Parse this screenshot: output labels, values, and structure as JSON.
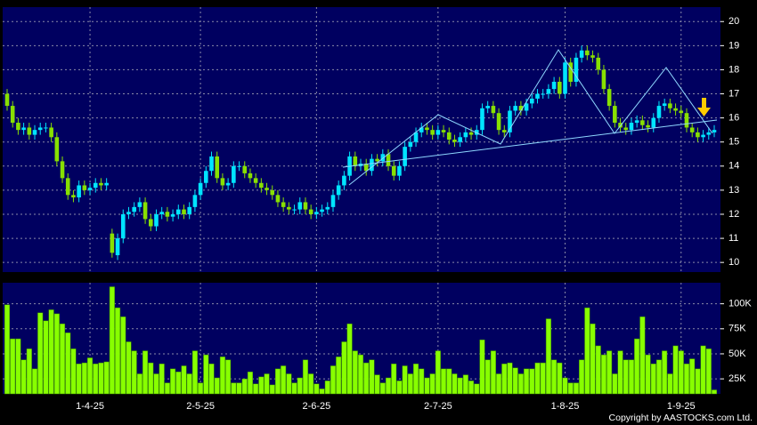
{
  "chart_data": {
    "type": "candlestick",
    "categories": [
      null,
      null,
      null,
      null,
      null,
      null,
      null,
      null,
      null,
      null,
      null,
      null,
      null,
      null,
      null,
      "1-4-25",
      null,
      null,
      null,
      null,
      null,
      null,
      null,
      null,
      null,
      null,
      null,
      null,
      null,
      null,
      null,
      null,
      null,
      null,
      null,
      "2-5-25",
      null,
      null,
      null,
      null,
      null,
      null,
      null,
      null,
      null,
      null,
      null,
      null,
      null,
      null,
      null,
      null,
      null,
      null,
      null,
      null,
      "2-6-25",
      null,
      null,
      null,
      null,
      null,
      null,
      null,
      null,
      null,
      null,
      null,
      null,
      null,
      null,
      null,
      null,
      null,
      null,
      null,
      null,
      null,
      "2-7-25",
      null,
      null,
      null,
      null,
      null,
      null,
      null,
      null,
      null,
      null,
      null,
      null,
      null,
      null,
      null,
      null,
      null,
      null,
      null,
      null,
      null,
      null,
      "1-8-25",
      null,
      null,
      null,
      null,
      null,
      null,
      null,
      null,
      null,
      null,
      null,
      null,
      null,
      null,
      null,
      null,
      null,
      null,
      null,
      null,
      "1-9-25",
      null,
      null,
      null,
      null,
      null,
      null
    ],
    "open": [
      17.0,
      16.5,
      15.8,
      15.5,
      15.6,
      15.3,
      15.5,
      15.6,
      15.6,
      15.2,
      14.2,
      13.5,
      12.8,
      12.7,
      13.2,
      13.0,
      13.1,
      13.3,
      13.2,
      11.2,
      10.3,
      11.0,
      12.0,
      12.1,
      12.3,
      12.5,
      11.8,
      11.5,
      12.0,
      12.1,
      11.9,
      12.0,
      12.2,
      12.0,
      12.3,
      12.8,
      13.3,
      13.8,
      14.4,
      13.5,
      13.2,
      13.3,
      14.0,
      14.0,
      13.7,
      13.5,
      13.3,
      13.1,
      13.0,
      12.8,
      12.5,
      12.3,
      12.2,
      12.2,
      12.5,
      12.2,
      12.0,
      12.1,
      12.2,
      12.3,
      12.8,
      13.2,
      13.6,
      14.4,
      14.0,
      14.1,
      13.8,
      14.3,
      14.2,
      14.5,
      14.0,
      13.6,
      14.0,
      14.8,
      15.0,
      15.4,
      15.6,
      15.5,
      15.3,
      15.5,
      15.4,
      15.1,
      15.0,
      15.2,
      15.4,
      15.3,
      15.5,
      16.4,
      16.5,
      16.2,
      15.5,
      15.4,
      16.3,
      16.5,
      16.3,
      16.6,
      16.8,
      17.0,
      17.0,
      17.2,
      17.5,
      17.0,
      18.3,
      17.5,
      18.5,
      18.8,
      18.6,
      18.5,
      18.0,
      17.2,
      16.5,
      15.8,
      15.6,
      15.5,
      15.8,
      15.9,
      15.7,
      15.6,
      16.0,
      16.5,
      16.6,
      16.4,
      16.3,
      16.2,
      15.6,
      15.4,
      15.2,
      15.3,
      15.4
    ],
    "high": [
      17.2,
      16.7,
      16.0,
      15.8,
      15.8,
      15.7,
      15.8,
      15.8,
      15.8,
      15.4,
      14.4,
      13.7,
      13.0,
      13.4,
      13.4,
      13.3,
      13.5,
      13.5,
      13.5,
      11.4,
      11.2,
      12.2,
      12.3,
      12.5,
      12.7,
      12.7,
      12.0,
      12.2,
      12.3,
      12.3,
      12.2,
      12.4,
      12.4,
      12.5,
      13.0,
      13.5,
      14.0,
      14.6,
      14.6,
      13.7,
      13.5,
      14.2,
      14.2,
      14.2,
      13.9,
      13.7,
      13.5,
      13.3,
      13.2,
      13.0,
      12.7,
      12.5,
      12.4,
      12.7,
      12.7,
      12.4,
      12.3,
      12.4,
      12.5,
      13.0,
      13.4,
      13.8,
      14.6,
      14.6,
      14.3,
      14.3,
      14.5,
      14.5,
      14.7,
      14.7,
      14.2,
      14.2,
      15.0,
      15.2,
      15.6,
      15.8,
      15.8,
      15.7,
      15.7,
      15.7,
      15.6,
      15.3,
      15.4,
      15.6,
      15.6,
      15.7,
      16.6,
      16.7,
      16.7,
      16.4,
      15.7,
      16.5,
      16.7,
      16.7,
      16.8,
      17.0,
      17.2,
      17.2,
      17.4,
      17.7,
      17.7,
      18.5,
      18.5,
      18.7,
      19.0,
      19.0,
      18.8,
      18.7,
      18.2,
      17.4,
      16.7,
      16.0,
      15.8,
      16.0,
      16.1,
      16.1,
      15.9,
      16.2,
      16.7,
      16.8,
      16.8,
      16.6,
      16.5,
      16.4,
      15.8,
      15.6,
      15.5,
      15.6,
      15.7
    ],
    "low": [
      16.3,
      15.6,
      15.3,
      15.3,
      15.1,
      15.1,
      15.3,
      15.4,
      15.0,
      14.0,
      13.3,
      12.6,
      12.5,
      12.5,
      12.8,
      12.8,
      12.9,
      13.0,
      13.0,
      10.2,
      10.1,
      10.8,
      11.8,
      11.9,
      12.1,
      11.6,
      11.3,
      11.3,
      11.8,
      11.7,
      11.7,
      11.8,
      11.8,
      11.8,
      12.1,
      12.6,
      13.1,
      13.6,
      13.3,
      13.0,
      13.0,
      13.1,
      13.8,
      13.5,
      13.3,
      13.1,
      12.9,
      12.8,
      12.6,
      12.3,
      12.1,
      12.0,
      12.0,
      12.0,
      12.0,
      11.8,
      11.8,
      11.9,
      12.0,
      12.1,
      12.6,
      13.0,
      13.4,
      13.8,
      13.8,
      13.6,
      13.6,
      14.0,
      14.0,
      13.8,
      13.4,
      13.4,
      13.8,
      14.6,
      14.8,
      15.2,
      15.3,
      15.1,
      15.1,
      15.2,
      14.9,
      14.8,
      14.8,
      15.0,
      15.1,
      15.1,
      15.3,
      16.2,
      16.0,
      15.3,
      15.2,
      15.2,
      16.1,
      16.1,
      16.1,
      16.4,
      16.6,
      16.8,
      16.8,
      17.0,
      16.8,
      16.8,
      17.3,
      17.3,
      18.3,
      18.4,
      18.3,
      17.8,
      17.0,
      16.3,
      15.6,
      15.4,
      15.3,
      15.3,
      15.6,
      15.5,
      15.4,
      15.4,
      15.8,
      16.3,
      16.2,
      16.1,
      16.0,
      15.4,
      15.2,
      15.0,
      15.0,
      15.1,
      15.2
    ],
    "close": [
      16.5,
      15.8,
      15.5,
      15.6,
      15.3,
      15.5,
      15.6,
      15.6,
      15.2,
      14.2,
      13.5,
      12.8,
      12.7,
      13.2,
      13.0,
      13.1,
      13.3,
      13.2,
      13.3,
      10.4,
      11.0,
      12.0,
      12.1,
      12.3,
      12.5,
      11.8,
      11.5,
      12.0,
      12.1,
      11.9,
      12.0,
      12.2,
      12.0,
      12.3,
      12.8,
      13.3,
      13.8,
      14.4,
      13.5,
      13.2,
      13.3,
      14.0,
      14.0,
      13.7,
      13.5,
      13.3,
      13.1,
      13.0,
      12.8,
      12.5,
      12.3,
      12.2,
      12.2,
      12.5,
      12.2,
      12.0,
      12.1,
      12.2,
      12.3,
      12.8,
      13.2,
      13.6,
      14.4,
      14.0,
      14.1,
      13.8,
      14.3,
      14.2,
      14.5,
      14.0,
      13.6,
      14.0,
      14.8,
      15.0,
      15.4,
      15.6,
      15.5,
      15.3,
      15.5,
      15.4,
      15.1,
      15.0,
      15.2,
      15.4,
      15.3,
      15.5,
      16.4,
      16.5,
      16.2,
      15.5,
      15.4,
      16.3,
      16.5,
      16.3,
      16.6,
      16.8,
      17.0,
      17.0,
      17.2,
      17.5,
      17.0,
      18.3,
      17.5,
      18.5,
      18.8,
      18.6,
      18.5,
      18.0,
      17.2,
      16.5,
      15.8,
      15.6,
      15.5,
      15.8,
      15.9,
      15.7,
      15.6,
      16.0,
      16.5,
      16.6,
      16.4,
      16.3,
      16.2,
      15.6,
      15.4,
      15.2,
      15.3,
      15.4,
      15.5
    ],
    "up_color": "#00e5ff",
    "down_color": "#88e000",
    "ylim": [
      9.6,
      20.6
    ],
    "yticks": [
      10,
      11,
      12,
      13,
      14,
      15,
      16,
      17,
      18,
      19,
      20
    ],
    "grid": true,
    "volume": {
      "type": "bar",
      "color": "#88ff00",
      "values": [
        99000,
        65000,
        65000,
        44000,
        55000,
        35000,
        91000,
        83000,
        94000,
        90000,
        80000,
        71000,
        55000,
        40000,
        41000,
        46000,
        40000,
        41000,
        42000,
        117000,
        96000,
        87000,
        62000,
        53000,
        30000,
        53000,
        41000,
        30000,
        40000,
        21000,
        35000,
        32000,
        38000,
        30000,
        53000,
        21000,
        49000,
        40000,
        26000,
        47000,
        44000,
        21000,
        21000,
        25000,
        32000,
        20000,
        27000,
        30000,
        19000,
        35000,
        38000,
        30000,
        21000,
        26000,
        44000,
        30000,
        20000,
        15000,
        23000,
        38000,
        47000,
        62000,
        80000,
        53000,
        49000,
        41000,
        44000,
        29000,
        21000,
        26000,
        40000,
        23000,
        38000,
        30000,
        40000,
        35000,
        26000,
        30000,
        53000,
        35000,
        35000,
        30000,
        26000,
        29000,
        23000,
        20000,
        64000,
        44000,
        53000,
        30000,
        40000,
        41000,
        36000,
        30000,
        35000,
        35000,
        41000,
        41000,
        85000,
        44000,
        41000,
        26000,
        21000,
        21000,
        44000,
        96000,
        80000,
        58000,
        49000,
        53000,
        30000,
        53000,
        44000,
        44000,
        65000,
        87000,
        49000,
        40000,
        44000,
        53000,
        30000,
        58000,
        53000,
        40000,
        45000,
        35000,
        58000,
        55000,
        14000
      ],
      "ylim": [
        10000,
        121000
      ],
      "yticks": [
        {
          "value": 25000,
          "label": "25K"
        },
        {
          "value": 50000,
          "label": "50K"
        },
        {
          "value": 75000,
          "label": "75K"
        },
        {
          "value": 100000,
          "label": "100K"
        }
      ]
    }
  },
  "copyright": "Copyright by AASTOCKS.com Ltd."
}
